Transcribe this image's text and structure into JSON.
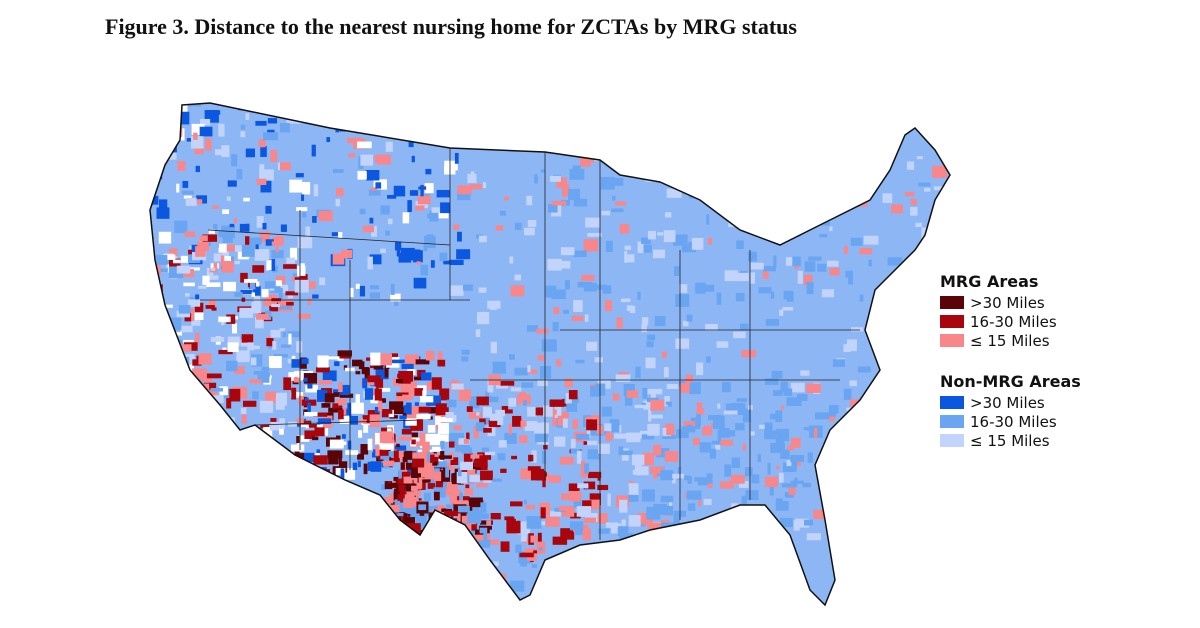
{
  "title": "Figure 3. Distance to the nearest nursing home for ZCTAs by MRG status",
  "legend": {
    "mrg": {
      "heading": "MRG Areas",
      "items": [
        {
          "label": ">30 Miles",
          "color": "#5a0408"
        },
        {
          "label": "16-30 Miles",
          "color": "#a8060c"
        },
        {
          "label": "≤ 15 Miles",
          "color": "#f7878a"
        }
      ]
    },
    "non_mrg": {
      "heading": "Non-MRG Areas",
      "items": [
        {
          "label": ">30 Miles",
          "color": "#0b57e0"
        },
        {
          "label": "16-30 Miles",
          "color": "#6aa5f2"
        },
        {
          "label": "≤ 15 Miles",
          "color": "#c2d4fb"
        }
      ]
    }
  }
}
